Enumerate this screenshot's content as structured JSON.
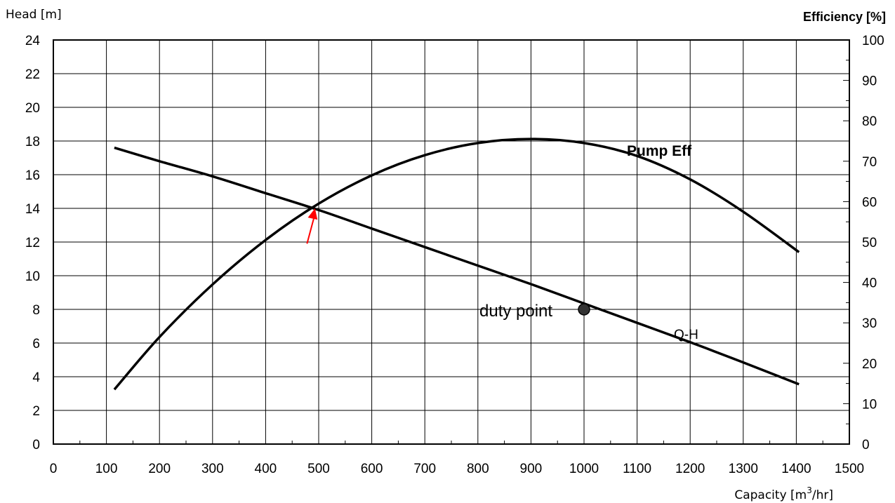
{
  "chart_data": {
    "type": "line",
    "title": "",
    "xlabel": "Capacity [m3/hr]",
    "xlabel_parts": {
      "prefix": "Capacity [m",
      "superscript": "3",
      "suffix": "/hr]"
    },
    "ylabel_left": "Head [m]",
    "ylabel_right": "Efficiency [%]",
    "xlim": [
      0,
      1500
    ],
    "ylim_left": [
      0,
      24
    ],
    "ylim_right": [
      0,
      100
    ],
    "x_ticks": [
      "0",
      "100",
      "200",
      "300",
      "400",
      "500",
      "600",
      "700",
      "800",
      "900",
      "1000",
      "1100",
      "1200",
      "1300",
      "1400",
      "1500"
    ],
    "y_left_ticks": [
      "0",
      "2",
      "4",
      "6",
      "8",
      "10",
      "12",
      "14",
      "16",
      "18",
      "20",
      "22",
      "24"
    ],
    "y_right_ticks": [
      "0",
      "10",
      "20",
      "30",
      "40",
      "50",
      "60",
      "70",
      "80",
      "90",
      "100"
    ],
    "grid": true,
    "series": [
      {
        "name": "Q-H",
        "axis": "left",
        "color": "#000000",
        "x": [
          115,
          200,
          300,
          400,
          500,
          600,
          700,
          800,
          900,
          1000,
          1100,
          1200,
          1300,
          1405
        ],
        "y": [
          17.6,
          16.8,
          15.9,
          14.9,
          13.9,
          12.8,
          11.7,
          10.6,
          9.5,
          8.35,
          7.2,
          6.05,
          4.85,
          3.55
        ]
      },
      {
        "name": "Pump Eff",
        "axis": "right",
        "color": "#000000",
        "x": [
          115,
          200,
          300,
          400,
          500,
          600,
          700,
          800,
          900,
          1000,
          1100,
          1200,
          1300,
          1405
        ],
        "y": [
          13.5,
          26.5,
          39.5,
          50.5,
          59.5,
          66.5,
          71.5,
          74.5,
          75.5,
          74.5,
          71.3,
          65.5,
          57.5,
          47.5
        ]
      }
    ],
    "annotations": {
      "duty_point": {
        "label": "duty point",
        "x": 1000,
        "y": 8.0,
        "color": "#333333"
      },
      "qh_label": "Q-H",
      "eff_label": "Pump Eff",
      "arrow": {
        "color": "#ff0000",
        "from": {
          "x": 478,
          "y": 11.9
        },
        "to": {
          "x": 493,
          "y": 14.0
        }
      }
    }
  }
}
